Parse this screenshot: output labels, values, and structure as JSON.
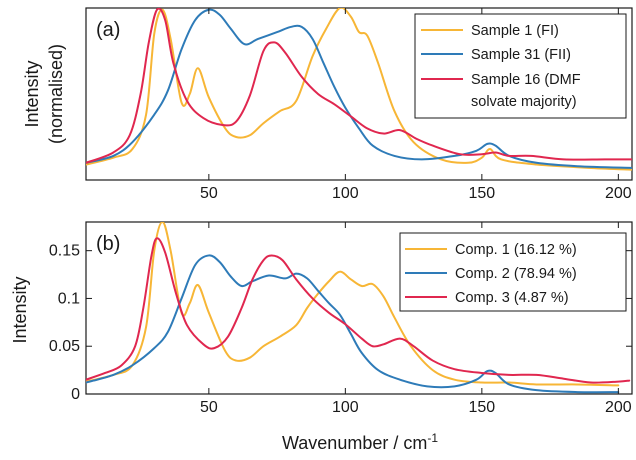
{
  "colors": {
    "sample1": "#f7b636",
    "sample31": "#2e7bb8",
    "sample16": "#e0274f",
    "axis": "#1a1a1a"
  },
  "chart_data": [
    {
      "id": "a",
      "type": "line",
      "panel_label": "(a)",
      "xlabel": "",
      "ylabel_line1": "Intensity",
      "ylabel_line2": "(normalised)",
      "xlim": [
        5,
        205
      ],
      "ylim": [
        0,
        1
      ],
      "yticks": [],
      "xticks": [
        50,
        100,
        150,
        200
      ],
      "grid": false,
      "legend_position": "top-right",
      "legend": {
        "entries": [
          {
            "text": "Sample 1 (FI)",
            "series": 0
          },
          {
            "text": "Sample 31 (FII)",
            "series": 1
          },
          {
            "text": "Sample 16 (DMF",
            "series": 2
          },
          {
            "text": "solvate majority)",
            "series": null
          }
        ]
      },
      "series": [
        {
          "name": "Sample 1 (FI)",
          "color_key": "sample1",
          "points": [
            [
              5,
              0.09
            ],
            [
              15,
              0.13
            ],
            [
              22,
              0.18
            ],
            [
              27,
              0.38
            ],
            [
              30,
              0.85
            ],
            [
              33,
              0.99
            ],
            [
              36,
              0.82
            ],
            [
              40,
              0.45
            ],
            [
              43,
              0.5
            ],
            [
              46,
              0.65
            ],
            [
              50,
              0.48
            ],
            [
              56,
              0.3
            ],
            [
              60,
              0.25
            ],
            [
              65,
              0.26
            ],
            [
              70,
              0.33
            ],
            [
              76,
              0.4
            ],
            [
              82,
              0.46
            ],
            [
              88,
              0.72
            ],
            [
              93,
              0.88
            ],
            [
              98,
              1.0
            ],
            [
              102,
              0.95
            ],
            [
              105,
              0.86
            ],
            [
              108,
              0.84
            ],
            [
              112,
              0.68
            ],
            [
              118,
              0.4
            ],
            [
              125,
              0.22
            ],
            [
              135,
              0.12
            ],
            [
              145,
              0.1
            ],
            [
              150,
              0.13
            ],
            [
              153,
              0.18
            ],
            [
              157,
              0.12
            ],
            [
              170,
              0.09
            ],
            [
              190,
              0.07
            ],
            [
              205,
              0.06
            ]
          ]
        },
        {
          "name": "Sample 31 (FII)",
          "color_key": "sample31",
          "points": [
            [
              5,
              0.1
            ],
            [
              15,
              0.14
            ],
            [
              22,
              0.22
            ],
            [
              30,
              0.38
            ],
            [
              35,
              0.52
            ],
            [
              40,
              0.76
            ],
            [
              45,
              0.93
            ],
            [
              50,
              0.99
            ],
            [
              54,
              0.96
            ],
            [
              58,
              0.88
            ],
            [
              63,
              0.79
            ],
            [
              68,
              0.82
            ],
            [
              75,
              0.86
            ],
            [
              80,
              0.89
            ],
            [
              84,
              0.89
            ],
            [
              88,
              0.82
            ],
            [
              92,
              0.68
            ],
            [
              96,
              0.54
            ],
            [
              100,
              0.42
            ],
            [
              105,
              0.3
            ],
            [
              110,
              0.2
            ],
            [
              118,
              0.14
            ],
            [
              128,
              0.12
            ],
            [
              140,
              0.14
            ],
            [
              148,
              0.17
            ],
            [
              152,
              0.21
            ],
            [
              155,
              0.2
            ],
            [
              160,
              0.14
            ],
            [
              170,
              0.1
            ],
            [
              185,
              0.08
            ],
            [
              205,
              0.07
            ]
          ]
        },
        {
          "name": "Sample 16 (DMF solvate majority)",
          "color_key": "sample16",
          "points": [
            [
              5,
              0.1
            ],
            [
              15,
              0.16
            ],
            [
              21,
              0.26
            ],
            [
              25,
              0.5
            ],
            [
              28,
              0.8
            ],
            [
              31,
              0.99
            ],
            [
              34,
              0.93
            ],
            [
              37,
              0.68
            ],
            [
              42,
              0.46
            ],
            [
              48,
              0.36
            ],
            [
              55,
              0.32
            ],
            [
              60,
              0.34
            ],
            [
              65,
              0.49
            ],
            [
              70,
              0.75
            ],
            [
              74,
              0.8
            ],
            [
              78,
              0.74
            ],
            [
              84,
              0.6
            ],
            [
              90,
              0.5
            ],
            [
              96,
              0.44
            ],
            [
              102,
              0.37
            ],
            [
              108,
              0.3
            ],
            [
              114,
              0.27
            ],
            [
              120,
              0.29
            ],
            [
              126,
              0.24
            ],
            [
              132,
              0.2
            ],
            [
              142,
              0.15
            ],
            [
              150,
              0.15
            ],
            [
              155,
              0.16
            ],
            [
              160,
              0.14
            ],
            [
              168,
              0.14
            ],
            [
              180,
              0.12
            ],
            [
              195,
              0.12
            ],
            [
              205,
              0.12
            ]
          ]
        }
      ]
    },
    {
      "id": "b",
      "type": "line",
      "panel_label": "(b)",
      "xlabel": "Wavenumber / cm",
      "xlabel_sup": "-1",
      "ylabel_line1": "Intensity",
      "ylabel_line2": "",
      "xlim": [
        5,
        205
      ],
      "ylim": [
        0,
        0.18
      ],
      "yticks": [
        0,
        0.05,
        0.1,
        0.15
      ],
      "ytick_labels": [
        "0",
        "0.05",
        "0.1",
        "0.15"
      ],
      "xticks": [
        50,
        100,
        150,
        200
      ],
      "grid": false,
      "legend_position": "top-right",
      "legend": {
        "entries": [
          {
            "text": "Comp. 1 (16.12 %)",
            "series": 0
          },
          {
            "text": "Comp. 2 (78.94 %)",
            "series": 1
          },
          {
            "text": "Comp. 3 (4.87 %)",
            "series": 2
          }
        ]
      },
      "series": [
        {
          "name": "Comp. 1 (16.12 %)",
          "color_key": "sample1",
          "points": [
            [
              5,
              0.013
            ],
            [
              15,
              0.02
            ],
            [
              22,
              0.03
            ],
            [
              27,
              0.07
            ],
            [
              30,
              0.15
            ],
            [
              33,
              0.18
            ],
            [
              36,
              0.15
            ],
            [
              40,
              0.085
            ],
            [
              43,
              0.095
            ],
            [
              46,
              0.114
            ],
            [
              50,
              0.085
            ],
            [
              56,
              0.045
            ],
            [
              60,
              0.035
            ],
            [
              65,
              0.038
            ],
            [
              70,
              0.05
            ],
            [
              76,
              0.06
            ],
            [
              82,
              0.072
            ],
            [
              86,
              0.09
            ],
            [
              90,
              0.105
            ],
            [
              94,
              0.118
            ],
            [
              98,
              0.128
            ],
            [
              102,
              0.12
            ],
            [
              106,
              0.113
            ],
            [
              110,
              0.115
            ],
            [
              114,
              0.102
            ],
            [
              118,
              0.08
            ],
            [
              124,
              0.05
            ],
            [
              132,
              0.025
            ],
            [
              140,
              0.015
            ],
            [
              150,
              0.012
            ],
            [
              160,
              0.012
            ],
            [
              170,
              0.01
            ],
            [
              185,
              0.01
            ],
            [
              200,
              0.009
            ]
          ]
        },
        {
          "name": "Comp. 2 (78.94 %)",
          "color_key": "sample31",
          "points": [
            [
              5,
              0.012
            ],
            [
              15,
              0.02
            ],
            [
              22,
              0.03
            ],
            [
              30,
              0.048
            ],
            [
              35,
              0.065
            ],
            [
              40,
              0.1
            ],
            [
              45,
              0.135
            ],
            [
              50,
              0.145
            ],
            [
              54,
              0.138
            ],
            [
              58,
              0.123
            ],
            [
              62,
              0.113
            ],
            [
              66,
              0.118
            ],
            [
              72,
              0.124
            ],
            [
              78,
              0.121
            ],
            [
              82,
              0.126
            ],
            [
              86,
              0.121
            ],
            [
              90,
              0.108
            ],
            [
              94,
              0.095
            ],
            [
              98,
              0.083
            ],
            [
              102,
              0.063
            ],
            [
              106,
              0.043
            ],
            [
              112,
              0.025
            ],
            [
              120,
              0.015
            ],
            [
              130,
              0.008
            ],
            [
              140,
              0.008
            ],
            [
              148,
              0.015
            ],
            [
              152,
              0.024
            ],
            [
              155,
              0.022
            ],
            [
              160,
              0.01
            ],
            [
              170,
              0.004
            ],
            [
              185,
              0.002
            ],
            [
              200,
              0.002
            ]
          ]
        },
        {
          "name": "Comp. 3 (4.87 %)",
          "color_key": "sample16",
          "points": [
            [
              5,
              0.015
            ],
            [
              12,
              0.022
            ],
            [
              18,
              0.03
            ],
            [
              23,
              0.05
            ],
            [
              26,
              0.09
            ],
            [
              29,
              0.145
            ],
            [
              31,
              0.163
            ],
            [
              34,
              0.148
            ],
            [
              38,
              0.105
            ],
            [
              42,
              0.072
            ],
            [
              48,
              0.052
            ],
            [
              52,
              0.048
            ],
            [
              57,
              0.06
            ],
            [
              62,
              0.09
            ],
            [
              66,
              0.12
            ],
            [
              70,
              0.14
            ],
            [
              73,
              0.145
            ],
            [
              77,
              0.14
            ],
            [
              82,
              0.12
            ],
            [
              88,
              0.1
            ],
            [
              94,
              0.085
            ],
            [
              100,
              0.073
            ],
            [
              106,
              0.058
            ],
            [
              110,
              0.05
            ],
            [
              114,
              0.052
            ],
            [
              120,
              0.058
            ],
            [
              125,
              0.05
            ],
            [
              132,
              0.035
            ],
            [
              140,
              0.026
            ],
            [
              150,
              0.022
            ],
            [
              160,
              0.02
            ],
            [
              170,
              0.02
            ],
            [
              180,
              0.016
            ],
            [
              190,
              0.012
            ],
            [
              200,
              0.013
            ],
            [
              204,
              0.014
            ]
          ]
        }
      ]
    }
  ]
}
